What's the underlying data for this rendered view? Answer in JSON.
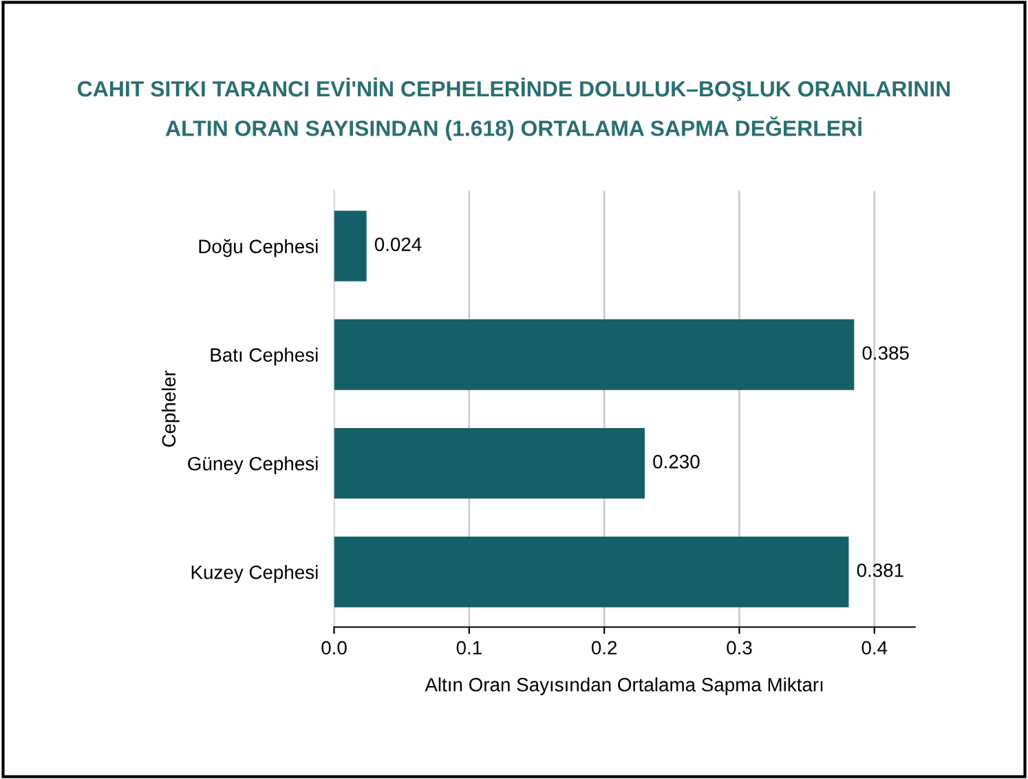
{
  "chart_data": {
    "type": "bar",
    "orientation": "horizontal",
    "title": "CAHIT SITKI TARANCI EVİ'NİN CEPHELERİNDE DOLULUK–BOŞLUK ORANLARININ\nALTIN ORAN SAYISINDAN (1.618) ORTALAMA SAPMA DEĞERLERİ",
    "categories": [
      "Doğu Cephesi",
      "Batı Cephesi",
      "Güney Cephesi",
      "Kuzey Cephesi"
    ],
    "values": [
      0.024,
      0.385,
      0.23,
      0.381
    ],
    "value_labels": [
      "0.024",
      "0.385",
      "0.230",
      "0.381"
    ],
    "color": "#14606a",
    "xlabel": "Altın Oran Sayısından Ortalama Sapma Miktarı",
    "ylabel": "Cepheler",
    "xlim": [
      0,
      0.43
    ],
    "xticks": [
      {
        "value": 0,
        "label": "0.0"
      },
      {
        "value": 0.1,
        "label": "0.1"
      },
      {
        "value": 0.2,
        "label": "0.2"
      },
      {
        "value": 0.3,
        "label": "0.3"
      },
      {
        "value": 0.4,
        "label": "0.4"
      }
    ],
    "grid": "x",
    "legend": false
  }
}
